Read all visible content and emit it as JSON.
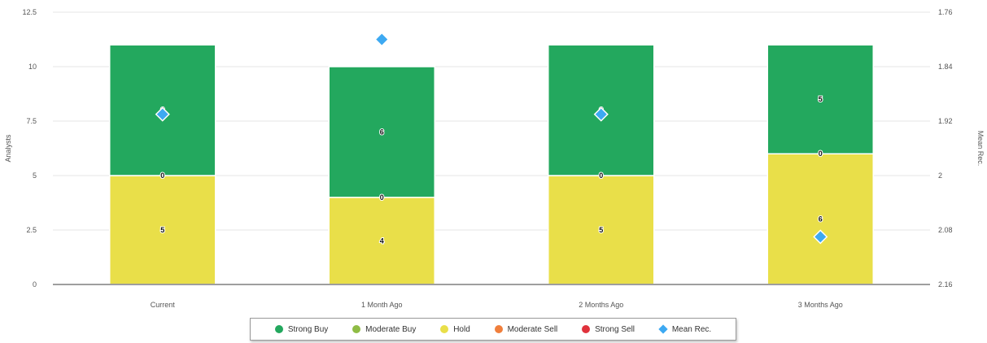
{
  "chart_data": {
    "type": "bar",
    "stacked": true,
    "categories": [
      "Current",
      "1 Month Ago",
      "2 Months Ago",
      "3 Months Ago"
    ],
    "series": [
      {
        "name": "Strong Buy",
        "color": "#23a85e",
        "values": [
          6,
          6,
          6,
          5
        ],
        "labels": [
          "6",
          "6",
          "6",
          "5"
        ]
      },
      {
        "name": "Moderate Buy",
        "color": "#8fbc45",
        "values": [
          0,
          0,
          0,
          0
        ],
        "labels": [
          "0",
          "0",
          "0",
          "0"
        ]
      },
      {
        "name": "Hold",
        "color": "#e9df49",
        "values": [
          5,
          4,
          5,
          6
        ],
        "labels": [
          "5",
          "4",
          "5",
          "6"
        ]
      },
      {
        "name": "Moderate Sell",
        "color": "#f07f3c",
        "values": [
          0,
          0,
          0,
          0
        ]
      },
      {
        "name": "Strong Sell",
        "color": "#e0323c",
        "values": [
          0,
          0,
          0,
          0
        ]
      }
    ],
    "mean_rec": {
      "name": "Mean Rec.",
      "color": "#3da9f2",
      "values": [
        1.91,
        1.8,
        1.91,
        2.09
      ]
    },
    "y_left": {
      "label": "Analysts",
      "min": 0,
      "max": 12.5,
      "ticks": [
        "0",
        "2.5",
        "5",
        "7.5",
        "10",
        "12.5"
      ]
    },
    "y_right": {
      "label": "Mean Rec.",
      "min": 1.76,
      "max": 2.16,
      "reversed": true,
      "ticks": [
        "1.76",
        "1.84",
        "1.92",
        "2",
        "2.08",
        "2.16"
      ]
    },
    "grid": true,
    "legend_position": "bottom"
  }
}
